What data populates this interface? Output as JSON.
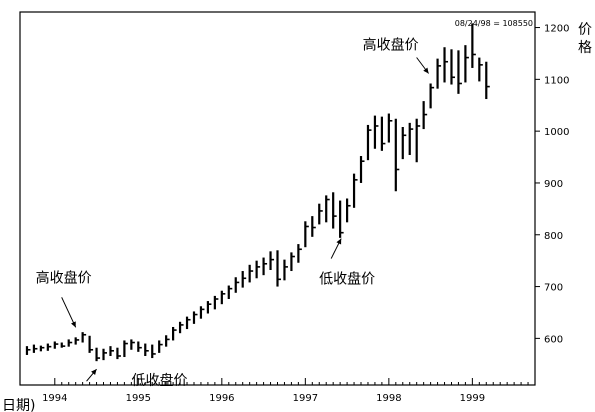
{
  "chart_data": {
    "type": "bar",
    "header_label": "08/24/98 = 108550",
    "ylabel": "价格",
    "xlabel": "日期)",
    "ylim": [
      510,
      1230
    ],
    "y_ticks": [
      600,
      700,
      800,
      900,
      1000,
      1100,
      1200
    ],
    "x_tick_labels": [
      "1994",
      "1995",
      "1996",
      "1997",
      "1998",
      "1999"
    ],
    "xlim_months": [
      -5,
      69
    ],
    "annotations": [
      {
        "name": "high-close-1994",
        "text": "高收盘价",
        "target_month": 3
      },
      {
        "name": "low-close-1994",
        "text": "低收盘价",
        "target_month": 6
      },
      {
        "name": "low-close-1997",
        "text": "低收盘价",
        "target_month": 40
      },
      {
        "name": "high-close-1997",
        "text": "高收盘价",
        "target_month": 54
      }
    ],
    "series": [
      {
        "values": [
          {
            "h": 585,
            "l": 568,
            "c": 578
          },
          {
            "h": 588,
            "l": 572,
            "c": 580
          },
          {
            "h": 586,
            "l": 575,
            "c": 582
          },
          {
            "h": 590,
            "l": 576,
            "c": 584
          },
          {
            "h": 594,
            "l": 580,
            "c": 589
          },
          {
            "h": 592,
            "l": 582,
            "c": 585
          },
          {
            "h": 598,
            "l": 584,
            "c": 592
          },
          {
            "h": 602,
            "l": 588,
            "c": 597
          },
          {
            "h": 612,
            "l": 592,
            "c": 607
          },
          {
            "h": 605,
            "l": 572,
            "c": 578
          },
          {
            "h": 582,
            "l": 556,
            "c": 562
          },
          {
            "h": 580,
            "l": 558,
            "c": 572
          },
          {
            "h": 585,
            "l": 566,
            "c": 576
          },
          {
            "h": 582,
            "l": 560,
            "c": 566
          },
          {
            "h": 596,
            "l": 564,
            "c": 590
          },
          {
            "h": 598,
            "l": 578,
            "c": 592
          },
          {
            "h": 594,
            "l": 574,
            "c": 582
          },
          {
            "h": 590,
            "l": 566,
            "c": 576
          },
          {
            "h": 588,
            "l": 562,
            "c": 570
          },
          {
            "h": 596,
            "l": 572,
            "c": 588
          },
          {
            "h": 606,
            "l": 584,
            "c": 598
          },
          {
            "h": 622,
            "l": 596,
            "c": 616
          },
          {
            "h": 632,
            "l": 610,
            "c": 626
          },
          {
            "h": 642,
            "l": 618,
            "c": 636
          },
          {
            "h": 652,
            "l": 628,
            "c": 646
          },
          {
            "h": 662,
            "l": 638,
            "c": 656
          },
          {
            "h": 672,
            "l": 648,
            "c": 666
          },
          {
            "h": 682,
            "l": 656,
            "c": 676
          },
          {
            "h": 692,
            "l": 666,
            "c": 686
          },
          {
            "h": 702,
            "l": 676,
            "c": 696
          },
          {
            "h": 718,
            "l": 688,
            "c": 708
          },
          {
            "h": 730,
            "l": 698,
            "c": 716
          },
          {
            "h": 742,
            "l": 708,
            "c": 730
          },
          {
            "h": 750,
            "l": 716,
            "c": 738
          },
          {
            "h": 756,
            "l": 722,
            "c": 744
          },
          {
            "h": 768,
            "l": 732,
            "c": 752
          },
          {
            "h": 770,
            "l": 700,
            "c": 714
          },
          {
            "h": 752,
            "l": 712,
            "c": 738
          },
          {
            "h": 766,
            "l": 730,
            "c": 758
          },
          {
            "h": 782,
            "l": 746,
            "c": 772
          },
          {
            "h": 826,
            "l": 776,
            "c": 816
          },
          {
            "h": 836,
            "l": 796,
            "c": 814
          },
          {
            "h": 860,
            "l": 820,
            "c": 846
          },
          {
            "h": 876,
            "l": 824,
            "c": 868
          },
          {
            "h": 882,
            "l": 812,
            "c": 836
          },
          {
            "h": 866,
            "l": 794,
            "c": 804
          },
          {
            "h": 870,
            "l": 824,
            "c": 856
          },
          {
            "h": 918,
            "l": 852,
            "c": 906
          },
          {
            "h": 952,
            "l": 900,
            "c": 942
          },
          {
            "h": 1012,
            "l": 944,
            "c": 1002
          },
          {
            "h": 1030,
            "l": 966,
            "c": 1010
          },
          {
            "h": 1028,
            "l": 962,
            "c": 976
          },
          {
            "h": 1034,
            "l": 978,
            "c": 1020
          },
          {
            "h": 1024,
            "l": 884,
            "c": 926
          },
          {
            "h": 1008,
            "l": 946,
            "c": 992
          },
          {
            "h": 1016,
            "l": 954,
            "c": 1004
          },
          {
            "h": 1024,
            "l": 940,
            "c": 1010
          },
          {
            "h": 1058,
            "l": 1004,
            "c": 1032
          },
          {
            "h": 1092,
            "l": 1044,
            "c": 1084
          },
          {
            "h": 1140,
            "l": 1082,
            "c": 1126
          },
          {
            "h": 1162,
            "l": 1094,
            "c": 1134
          },
          {
            "h": 1158,
            "l": 1090,
            "c": 1104
          },
          {
            "h": 1156,
            "l": 1072,
            "c": 1092
          },
          {
            "h": 1166,
            "l": 1094,
            "c": 1142
          },
          {
            "h": 1208,
            "l": 1122,
            "c": 1148
          },
          {
            "h": 1142,
            "l": 1096,
            "c": 1128
          },
          {
            "h": 1134,
            "l": 1062,
            "c": 1086
          }
        ]
      }
    ]
  }
}
